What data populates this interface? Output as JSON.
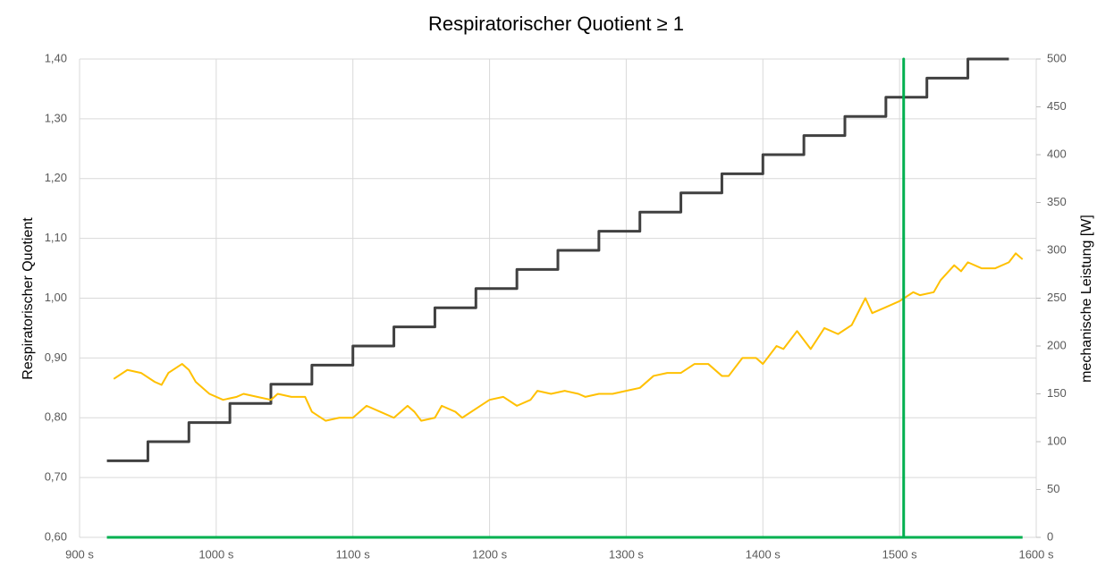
{
  "chart_data": {
    "type": "line",
    "title": "Respiratorischer Quotient ≥ 1",
    "ylabel": "Respiratorischer Quotient",
    "y2label": "mechanische Leistung [W]",
    "xlim": [
      900,
      1600
    ],
    "xticks": [
      {
        "value": 900,
        "label": "900 s"
      },
      {
        "value": 1000,
        "label": "1000 s"
      },
      {
        "value": 1100,
        "label": "1100 s"
      },
      {
        "value": 1200,
        "label": "1200 s"
      },
      {
        "value": 1300,
        "label": "1300 s"
      },
      {
        "value": 1400,
        "label": "1400 s"
      },
      {
        "value": 1500,
        "label": "1500 s"
      },
      {
        "value": 1600,
        "label": "1600 s"
      }
    ],
    "ylim": [
      0.6,
      1.4
    ],
    "yticks": [
      {
        "value": 0.6,
        "label": "0,60"
      },
      {
        "value": 0.7,
        "label": "0,70"
      },
      {
        "value": 0.8,
        "label": "0,80"
      },
      {
        "value": 0.9,
        "label": "0,90"
      },
      {
        "value": 1.0,
        "label": "1,00"
      },
      {
        "value": 1.1,
        "label": "1,10"
      },
      {
        "value": 1.2,
        "label": "1,20"
      },
      {
        "value": 1.3,
        "label": "1,30"
      },
      {
        "value": 1.4,
        "label": "1,40"
      }
    ],
    "y2lim": [
      0,
      500
    ],
    "y2ticks": [
      0,
      50,
      100,
      150,
      200,
      250,
      300,
      350,
      400,
      450,
      500
    ],
    "grid": true,
    "series": [
      {
        "color": "#404040",
        "axis": "y2",
        "step": "post",
        "x": [
          920,
          950,
          980,
          1010,
          1040,
          1070,
          1100,
          1130,
          1160,
          1190,
          1220,
          1250,
          1280,
          1310,
          1340,
          1370,
          1400,
          1430,
          1460,
          1490,
          1520,
          1550,
          1580
        ],
        "values": [
          80,
          100,
          120,
          140,
          160,
          180,
          200,
          220,
          240,
          260,
          280,
          300,
          320,
          340,
          360,
          380,
          400,
          420,
          440,
          460,
          480,
          500,
          500
        ]
      },
      {
        "color": "#ffc000",
        "axis": "y",
        "x": [
          925,
          935,
          945,
          955,
          960,
          965,
          975,
          980,
          985,
          995,
          1005,
          1015,
          1020,
          1030,
          1040,
          1045,
          1055,
          1065,
          1070,
          1080,
          1090,
          1100,
          1110,
          1120,
          1130,
          1140,
          1145,
          1150,
          1160,
          1165,
          1175,
          1180,
          1190,
          1200,
          1210,
          1220,
          1230,
          1235,
          1245,
          1255,
          1265,
          1270,
          1280,
          1290,
          1300,
          1310,
          1320,
          1330,
          1340,
          1350,
          1360,
          1370,
          1375,
          1385,
          1395,
          1400,
          1410,
          1415,
          1425,
          1435,
          1445,
          1455,
          1465,
          1475,
          1480,
          1490,
          1500,
          1510,
          1515,
          1525,
          1530,
          1540,
          1545,
          1550,
          1560,
          1570,
          1580,
          1585,
          1590
        ],
        "values": [
          0.865,
          0.88,
          0.875,
          0.86,
          0.855,
          0.875,
          0.89,
          0.88,
          0.86,
          0.84,
          0.83,
          0.835,
          0.84,
          0.835,
          0.83,
          0.84,
          0.835,
          0.835,
          0.81,
          0.795,
          0.8,
          0.8,
          0.82,
          0.81,
          0.8,
          0.82,
          0.81,
          0.795,
          0.8,
          0.82,
          0.81,
          0.8,
          0.815,
          0.83,
          0.835,
          0.82,
          0.83,
          0.845,
          0.84,
          0.845,
          0.84,
          0.835,
          0.84,
          0.84,
          0.845,
          0.85,
          0.87,
          0.875,
          0.875,
          0.89,
          0.89,
          0.87,
          0.87,
          0.9,
          0.9,
          0.89,
          0.92,
          0.915,
          0.945,
          0.915,
          0.95,
          0.94,
          0.955,
          1.0,
          0.975,
          0.985,
          0.995,
          1.01,
          1.005,
          1.01,
          1.03,
          1.055,
          1.045,
          1.06,
          1.05,
          1.05,
          1.06,
          1.075,
          1.065
        ]
      },
      {
        "color": "#00b050",
        "axis": "y2",
        "x": [
          920,
          1503,
          1503,
          1503,
          1590
        ],
        "values": [
          0,
          0,
          500,
          0,
          0
        ]
      }
    ]
  }
}
